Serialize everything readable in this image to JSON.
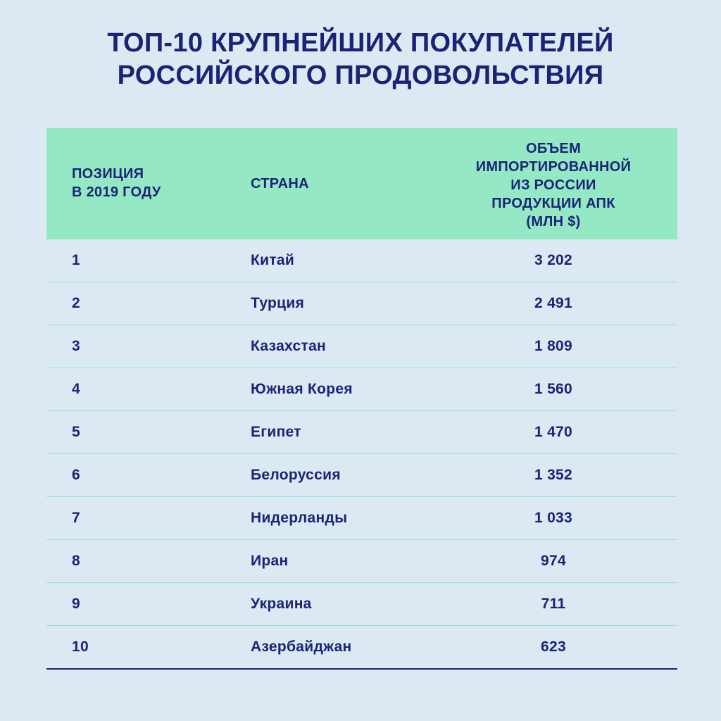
{
  "title": {
    "line1": "ТОП-10 КРУПНЕЙШИХ ПОКУПАТЕЛЕЙ",
    "line2": "РОССИЙСКОГО ПРОДОВОЛЬСТВИЯ"
  },
  "header": {
    "position_line1": "ПОЗИЦИЯ",
    "position_line2": "В 2019 ГОДУ",
    "country": "СТРАНА",
    "volume_line1": "ОБЪЕМ",
    "volume_line2": "ИМПОРТИРОВАННОЙ",
    "volume_line3": "ИЗ РОССИИ",
    "volume_line4": "ПРОДУКЦИИ АПК",
    "volume_line5": "(МЛН $)"
  },
  "chart_data": {
    "type": "table",
    "columns": [
      "ПОЗИЦИЯ В 2019 ГОДУ",
      "СТРАНА",
      "ОБЪЕМ ИМПОРТИРОВАННОЙ ИЗ РОССИИ ПРОДУКЦИИ АПК (МЛН $)"
    ],
    "rows": [
      {
        "position": "1",
        "country": "Китай",
        "value": "3 202"
      },
      {
        "position": "2",
        "country": "Турция",
        "value": "2 491"
      },
      {
        "position": "3",
        "country": "Казахстан",
        "value": "1 809"
      },
      {
        "position": "4",
        "country": "Южная Корея",
        "value": "1 560"
      },
      {
        "position": "5",
        "country": "Египет",
        "value": "1 470"
      },
      {
        "position": "6",
        "country": "Белоруссия",
        "value": "1 352"
      },
      {
        "position": "7",
        "country": "Нидерланды",
        "value": "1 033"
      },
      {
        "position": "8",
        "country": "Иран",
        "value": "974"
      },
      {
        "position": "9",
        "country": "Украина",
        "value": "711"
      },
      {
        "position": "10",
        "country": "Азербайджан",
        "value": "623"
      }
    ]
  },
  "colors": {
    "background": "#dce9f3",
    "header_fill": "#94e9c4",
    "text": "#1c2377",
    "row_divider": "#8fe3bf"
  }
}
